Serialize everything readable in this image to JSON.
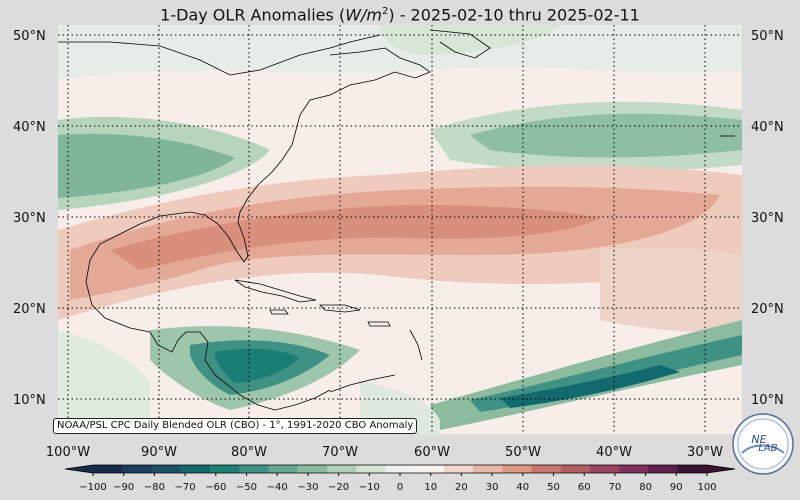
{
  "title": {
    "prefix": "1-Day OLR Anomalies (",
    "unit_base": "W/m",
    "unit_exp": "2",
    "suffix": ") - 2025-02-10 thru 2025-02-11"
  },
  "map": {
    "lon_range": [
      -100,
      -26
    ],
    "lat_range": [
      6.5,
      51
    ],
    "lon_ticks": [
      "100°W",
      "90°W",
      "80°W",
      "70°W",
      "60°W",
      "50°W",
      "40°W",
      "30°W"
    ],
    "lat_ticks": [
      "10°N",
      "20°N",
      "30°N",
      "40°N",
      "50°N"
    ]
  },
  "colorbar": {
    "ticks": [
      "−100",
      "−90",
      "−80",
      "−70",
      "−60",
      "−50",
      "−40",
      "−30",
      "−20",
      "−10",
      "0",
      "10",
      "20",
      "30",
      "40",
      "50",
      "60",
      "70",
      "80",
      "90",
      "100"
    ],
    "colors": [
      "#1a2a4a",
      "#1c3d5e",
      "#1d5266",
      "#136a6e",
      "#1b7f76",
      "#3f9283",
      "#64a690",
      "#8bba9f",
      "#b0cfb6",
      "#d3e3d4",
      "#f0f0ec",
      "#f8f3ef",
      "#f0d6cc",
      "#e8b8a7",
      "#dd9884",
      "#c9776e",
      "#b35c64",
      "#9a435f",
      "#7e2f5b",
      "#5e1f4e",
      "#3a1330"
    ]
  },
  "source": "NOAA/PSL CPC Daily Blended OLR (CBO) - 1°, 1991-2020 CBO Anomaly",
  "logo": {
    "line1": "NE",
    "line2": "LAB"
  }
}
